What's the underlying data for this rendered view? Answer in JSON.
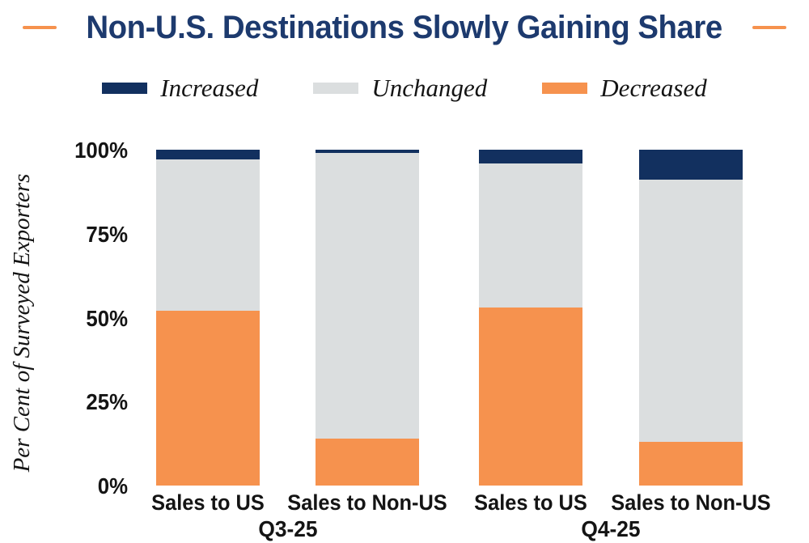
{
  "title": "Non-U.S. Destinations Slowly Gaining Share",
  "colors": {
    "title_navy": "#1D3A6E",
    "dash_orange": "#F6924E",
    "increased_navy": "#12305F",
    "unchanged_gray": "#DBDEDF",
    "decreased_orange": "#F6924E",
    "axis_text": "#141414",
    "background": "#FFFFFF"
  },
  "legend": [
    {
      "label": "Increased",
      "color": "#12305F"
    },
    {
      "label": "Unchanged",
      "color": "#DBDEDF"
    },
    {
      "label": "Decreased",
      "color": "#F6924E"
    }
  ],
  "chart_data": {
    "type": "bar",
    "stacked": true,
    "stacked_to_100_percent": true,
    "title": "Non-U.S. Destinations Slowly Gaining Share",
    "categories": [
      "Sales to US",
      "Sales to Non-US",
      "Sales to US",
      "Sales to Non-US"
    ],
    "groups": [
      {
        "label": "Q3-25",
        "category_indexes": [
          0,
          1
        ]
      },
      {
        "label": "Q4-25",
        "category_indexes": [
          2,
          3
        ]
      }
    ],
    "series": [
      {
        "name": "Decreased",
        "color": "#F6924E",
        "values": [
          52,
          14,
          53,
          13
        ]
      },
      {
        "name": "Unchanged",
        "color": "#DBDEDF",
        "values": [
          45,
          85,
          43,
          78
        ]
      },
      {
        "name": "Increased",
        "color": "#12305F",
        "values": [
          3,
          1,
          4,
          9
        ]
      }
    ],
    "xlabel": "",
    "ylabel": "Per Cent of Surveyed Exporters",
    "yticks": [
      "0%",
      "25%",
      "50%",
      "75%",
      "100%"
    ],
    "ylim": [
      0,
      100
    ],
    "grid": false,
    "legend_position": "top"
  }
}
